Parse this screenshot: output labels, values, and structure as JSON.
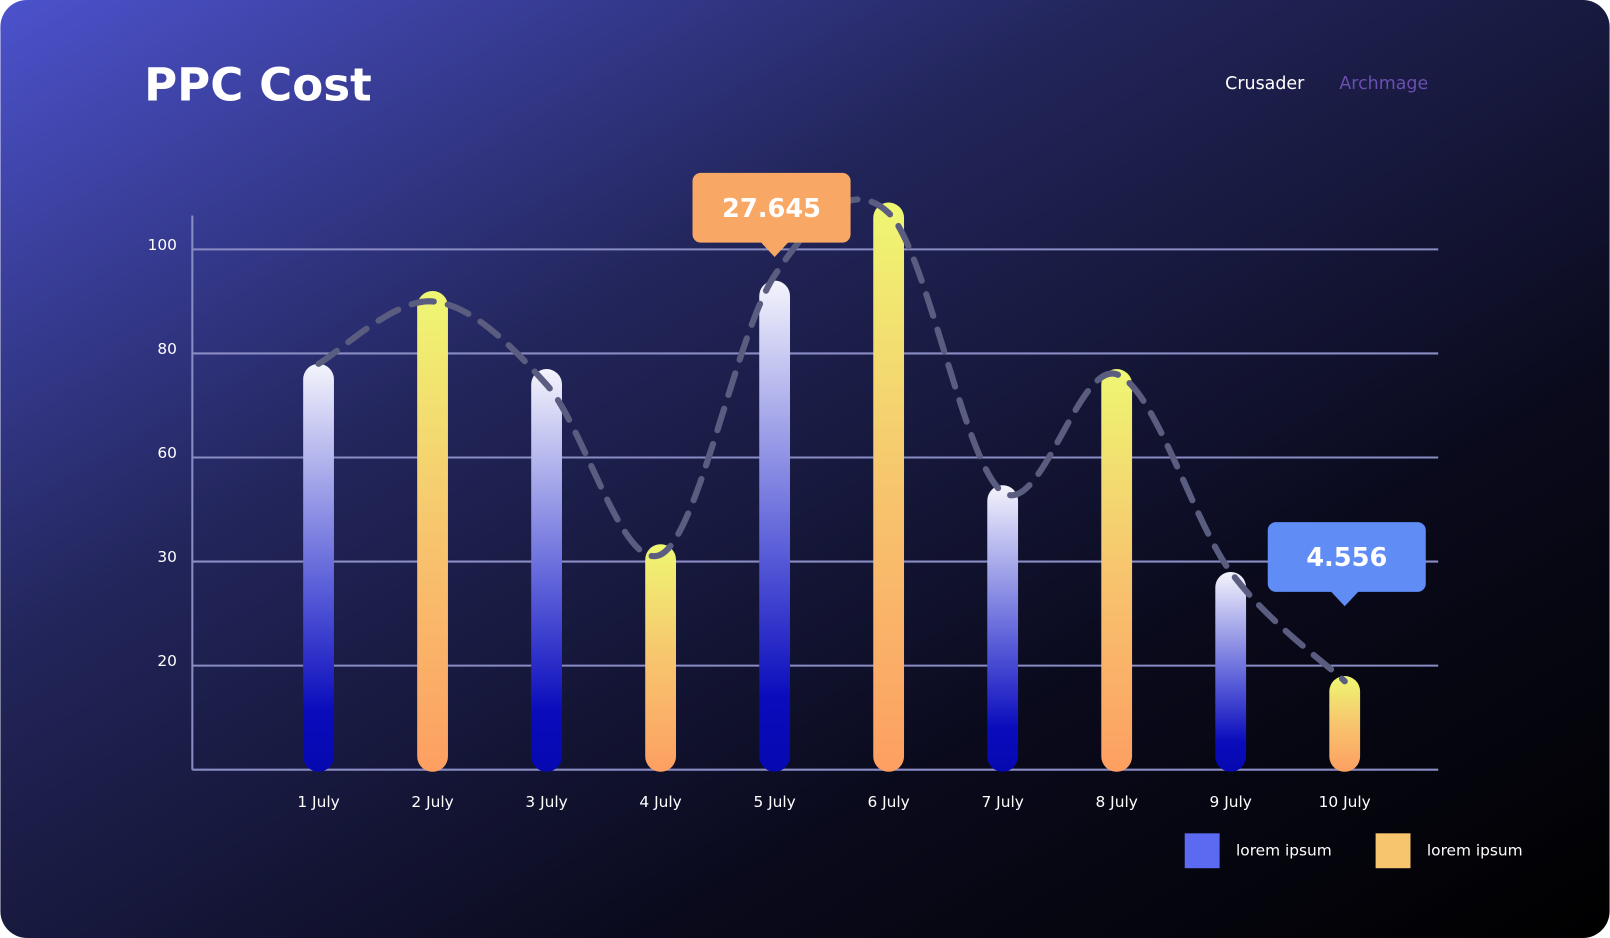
{
  "title": "PPC Cost",
  "tabs": [
    "Crusader",
    "Archmage"
  ],
  "chart_data": {
    "type": "bar",
    "categories": [
      "1 July",
      "2 July",
      "3 July",
      "4 July",
      "5 July",
      "6 July",
      "7 July",
      "8 July",
      "9 July",
      "10 July"
    ],
    "series": [
      {
        "name": "lorem ipsum",
        "color": "#5b6af0",
        "values": [
          78,
          null,
          77,
          null,
          94,
          null,
          52,
          null,
          29,
          null
        ]
      },
      {
        "name": "lorem ipsum",
        "color": "#f7c56e",
        "values": [
          null,
          92,
          null,
          35,
          null,
          109,
          null,
          77,
          null,
          18
        ]
      }
    ],
    "line": {
      "color": "#5a5d80",
      "values": [
        78,
        90,
        74,
        32,
        95,
        107,
        50,
        76,
        29,
        17
      ]
    },
    "annotations": [
      {
        "text": "27.645",
        "category": "5 July",
        "color": "#f8a765"
      },
      {
        "text": "4.556",
        "category": "10 July",
        "color": "#5f8cf5"
      }
    ],
    "ylim": [
      0,
      110
    ],
    "yticks": [
      20,
      30,
      60,
      80,
      100
    ],
    "grid": true
  }
}
